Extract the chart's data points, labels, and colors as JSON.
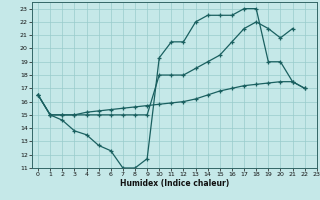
{
  "xlabel": "Humidex (Indice chaleur)",
  "xlim": [
    -0.5,
    23
  ],
  "ylim": [
    11,
    23.5
  ],
  "xticks": [
    0,
    1,
    2,
    3,
    4,
    5,
    6,
    7,
    8,
    9,
    10,
    11,
    12,
    13,
    14,
    15,
    16,
    17,
    18,
    19,
    20,
    21,
    22,
    23
  ],
  "yticks": [
    11,
    12,
    13,
    14,
    15,
    16,
    17,
    18,
    19,
    20,
    21,
    22,
    23
  ],
  "bg_color": "#c5e8e8",
  "line_color": "#1a6060",
  "grid_color": "#99cccc",
  "line1_x": [
    0,
    1,
    2,
    3,
    4,
    5,
    6,
    7,
    8,
    9,
    10,
    11,
    12,
    13,
    14,
    15,
    16,
    17,
    18,
    19,
    20,
    21,
    22
  ],
  "line1_y": [
    16.5,
    15,
    14.6,
    13.8,
    13.5,
    12.7,
    12.3,
    11.0,
    11.0,
    11.7,
    19.3,
    20.5,
    20.5,
    22.0,
    22.5,
    22.5,
    22.5,
    23.0,
    23.0,
    19.0,
    19.0,
    17.5,
    17.0
  ],
  "line2_x": [
    0,
    1,
    2,
    3,
    4,
    5,
    6,
    7,
    8,
    9,
    10,
    11,
    12,
    13,
    14,
    15,
    16,
    17,
    18,
    19,
    20,
    21
  ],
  "line2_y": [
    16.5,
    15,
    15,
    15,
    15,
    15,
    15,
    15,
    15,
    15,
    18,
    18,
    18,
    18.5,
    19,
    19.5,
    20.5,
    21.5,
    22.0,
    21.5,
    20.8,
    21.5
  ],
  "line3_x": [
    0,
    1,
    2,
    3,
    4,
    5,
    6,
    7,
    8,
    9,
    10,
    11,
    12,
    13,
    14,
    15,
    16,
    17,
    18,
    19,
    20,
    21,
    22
  ],
  "line3_y": [
    16.5,
    15.0,
    15.0,
    15.0,
    15.2,
    15.3,
    15.4,
    15.5,
    15.6,
    15.7,
    15.8,
    15.9,
    16.0,
    16.2,
    16.5,
    16.8,
    17.0,
    17.2,
    17.3,
    17.4,
    17.5,
    17.5,
    17.0
  ]
}
